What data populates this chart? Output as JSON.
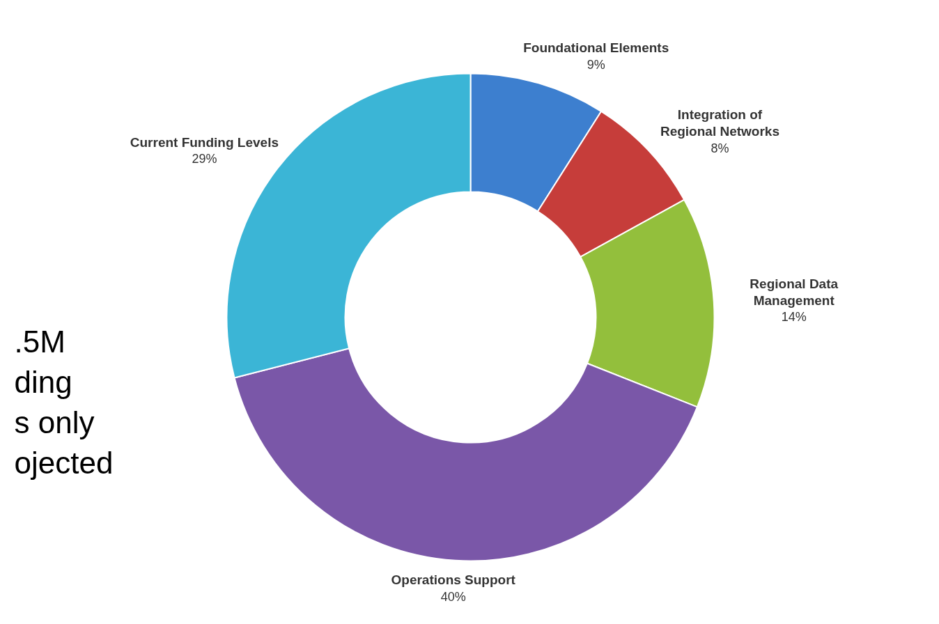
{
  "chart_data": {
    "type": "donut",
    "categories": [
      "Foundational Elements",
      "Integration of Regional Networks",
      "Regional Data Management",
      "Operations Support",
      "Current Funding Levels"
    ],
    "values": [
      9,
      8,
      14,
      40,
      29
    ],
    "colors": [
      "#3d7fcf",
      "#c63d3a",
      "#93bf3c",
      "#7a57a8",
      "#3bb5d6"
    ],
    "value_labels": [
      "9%",
      "8%",
      "14%",
      "40%",
      "29%"
    ],
    "annotations": [
      ".5M\nding\ns only\nojected"
    ]
  }
}
